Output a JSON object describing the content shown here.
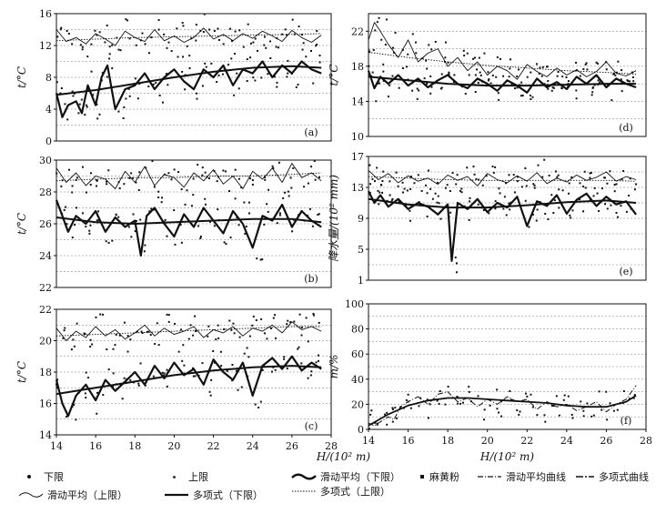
{
  "chart_data": [
    {
      "id": "a",
      "type": "line",
      "panel_label": "(a)",
      "ylabel": "t/°C",
      "xlabel": "",
      "ylim": [
        0,
        16
      ],
      "yticks": [
        0,
        4,
        8,
        12,
        16
      ],
      "xlim": [
        14,
        28
      ],
      "series": [
        {
          "role": "upper_moving_avg",
          "x": [
            14,
            14.5,
            15,
            15.5,
            16,
            16.5,
            17,
            17.5,
            18,
            18.5,
            19,
            19.5,
            20,
            20.5,
            21,
            21.5,
            22,
            22.5,
            23,
            23.5,
            24,
            24.5,
            25,
            25.5,
            26,
            26.5,
            27,
            27.5
          ],
          "y": [
            14,
            12.5,
            13,
            12.2,
            13.5,
            12.8,
            12,
            13.8,
            13,
            12.5,
            14,
            12.6,
            13.2,
            12.4,
            13,
            14.2,
            12.8,
            13.4,
            12.6,
            13.5,
            12.9,
            13.8,
            13.2,
            12.5,
            13.9,
            13,
            12.4,
            13.3
          ]
        },
        {
          "role": "upper_polynomial",
          "x": [
            14,
            16,
            18,
            20,
            22,
            24,
            26,
            27.5
          ],
          "y": [
            12.6,
            12.8,
            13,
            13.1,
            13.2,
            13.3,
            13.4,
            13.5
          ]
        },
        {
          "role": "lower_moving_avg",
          "x": [
            14,
            14.3,
            14.6,
            15,
            15.3,
            15.6,
            16,
            16.3,
            16.6,
            17,
            17.5,
            18,
            18.5,
            19,
            19.5,
            20,
            20.5,
            21,
            21.5,
            22,
            22.5,
            23,
            23.5,
            24,
            24.5,
            25,
            25.5,
            26,
            26.5,
            27,
            27.5
          ],
          "y": [
            6,
            3,
            4.5,
            5,
            3.5,
            7,
            4.5,
            8,
            9.5,
            4,
            6.5,
            7,
            8.5,
            6.5,
            8,
            9,
            7.5,
            6.5,
            9,
            8,
            9.5,
            7,
            9,
            8.5,
            10,
            8,
            9.5,
            8.5,
            10,
            9,
            8.5
          ]
        },
        {
          "role": "lower_polynomial",
          "x": [
            14,
            16,
            18,
            20,
            22,
            24,
            26,
            27.5
          ],
          "y": [
            5.8,
            6.4,
            7.2,
            8,
            8.7,
            9.2,
            9.4,
            9.2
          ]
        }
      ]
    },
    {
      "id": "b",
      "type": "line",
      "panel_label": "(b)",
      "ylabel": "t/°C",
      "xlabel": "",
      "ylim": [
        22,
        30
      ],
      "yticks": [
        22,
        24,
        26,
        28,
        30
      ],
      "xlim": [
        14,
        28
      ],
      "series": [
        {
          "role": "upper_moving_avg",
          "x": [
            14,
            14.5,
            15,
            15.5,
            16,
            16.5,
            17,
            17.5,
            18,
            18.5,
            19,
            19.5,
            20,
            20.5,
            21,
            21.5,
            22,
            22.5,
            23,
            23.5,
            24,
            24.5,
            25,
            25.5,
            26,
            26.5,
            27,
            27.5
          ],
          "y": [
            29.5,
            28.6,
            29.2,
            28.4,
            29,
            28.8,
            28.2,
            29.3,
            28.6,
            29.6,
            28.4,
            29.1,
            28.9,
            28.3,
            29.2,
            28.7,
            29.4,
            28.5,
            29,
            28.2,
            29.3,
            28.8,
            29.5,
            28.6,
            29.8,
            28.9,
            29.2,
            28.7
          ]
        },
        {
          "role": "upper_polynomial",
          "x": [
            14,
            16,
            18,
            20,
            22,
            24,
            26,
            27.5
          ],
          "y": [
            28.7,
            28.8,
            28.9,
            28.9,
            29,
            29,
            29.1,
            29.2
          ]
        },
        {
          "role": "lower_moving_avg",
          "x": [
            14,
            14.3,
            14.6,
            15,
            15.5,
            16,
            16.5,
            17,
            17.5,
            18,
            18.3,
            18.6,
            19,
            19.5,
            20,
            20.5,
            21,
            21.5,
            22,
            22.5,
            23,
            23.5,
            24,
            24.5,
            25,
            25.5,
            26,
            26.5,
            27,
            27.5
          ],
          "y": [
            27.5,
            26.5,
            25.5,
            26.5,
            26,
            26.8,
            25.5,
            26.4,
            25.8,
            26.2,
            24,
            26.5,
            27,
            26,
            25.2,
            26.6,
            25.8,
            27,
            26.2,
            25.4,
            26.8,
            26,
            24.5,
            26.5,
            26.2,
            27.2,
            25.8,
            26.8,
            26.2,
            25.8
          ]
        },
        {
          "role": "lower_polynomial",
          "x": [
            14,
            16,
            18,
            20,
            22,
            24,
            26,
            27.5
          ],
          "y": [
            26.4,
            26.1,
            26,
            26.1,
            26.2,
            26.3,
            26.3,
            26.1
          ]
        }
      ]
    },
    {
      "id": "c",
      "type": "line",
      "panel_label": "(c)",
      "ylabel": "t/°C",
      "xlabel": "",
      "ylim": [
        14,
        22
      ],
      "yticks": [
        14,
        16,
        18,
        20,
        22
      ],
      "xlim": [
        14,
        28
      ],
      "xticks": [
        14,
        16,
        18,
        20,
        22,
        24,
        26,
        28
      ],
      "series": [
        {
          "role": "upper_moving_avg",
          "x": [
            14,
            14.5,
            15,
            15.5,
            16,
            16.5,
            17,
            17.5,
            18,
            18.5,
            19,
            19.5,
            20,
            20.5,
            21,
            21.5,
            22,
            22.5,
            23,
            23.5,
            24,
            24.5,
            25,
            25.5,
            26,
            26.5,
            27,
            27.5
          ],
          "y": [
            20.8,
            20,
            20.6,
            20.2,
            20.9,
            20.3,
            20.7,
            20.1,
            20.5,
            21,
            20.3,
            20.8,
            20.4,
            20.6,
            20.9,
            20.2,
            20.7,
            20.5,
            20.9,
            20.3,
            20.8,
            20.6,
            21,
            20.5,
            21.2,
            20.7,
            20.9,
            20.6
          ]
        },
        {
          "role": "upper_polynomial",
          "x": [
            14,
            16,
            18,
            20,
            22,
            24,
            26,
            27.5
          ],
          "y": [
            20.3,
            20.4,
            20.5,
            20.6,
            20.7,
            20.8,
            20.9,
            20.9
          ]
        },
        {
          "role": "lower_moving_avg",
          "x": [
            14,
            14.3,
            14.6,
            15,
            15.5,
            16,
            16.5,
            17,
            17.5,
            18,
            18.5,
            19,
            19.5,
            20,
            20.5,
            21,
            21.5,
            22,
            22.5,
            23,
            23.5,
            24,
            24.5,
            25,
            25.5,
            26,
            26.5,
            27,
            27.5
          ],
          "y": [
            17.5,
            16,
            15.2,
            16.5,
            17.2,
            16.2,
            17.5,
            16.8,
            17.4,
            18,
            17.2,
            18.4,
            17.6,
            18.6,
            17.8,
            18.2,
            17.2,
            18.8,
            18,
            17.5,
            18.6,
            16.5,
            18.4,
            18.9,
            18.2,
            19,
            18.1,
            18.6,
            18.2
          ]
        },
        {
          "role": "lower_polynomial",
          "x": [
            14,
            16,
            18,
            20,
            22,
            24,
            26,
            27.5
          ],
          "y": [
            16.6,
            17,
            17.4,
            17.8,
            18.1,
            18.3,
            18.4,
            18.3
          ]
        }
      ]
    },
    {
      "id": "d",
      "type": "line",
      "panel_label": "(d)",
      "ylabel": "t/°C",
      "xlabel": "",
      "ylim": [
        10,
        24
      ],
      "yticks": [
        10,
        14,
        18,
        22
      ],
      "xlim": [
        14,
        28
      ],
      "series": [
        {
          "role": "upper_moving_avg",
          "x": [
            14,
            14.3,
            14.6,
            15,
            15.5,
            16,
            16.5,
            17,
            17.5,
            18,
            18.5,
            19,
            19.5,
            20,
            20.5,
            21,
            21.5,
            22,
            22.5,
            23,
            23.5,
            24,
            24.5,
            25,
            25.5,
            26,
            26.5,
            27,
            27.5
          ],
          "y": [
            21,
            23,
            22,
            20.5,
            19,
            21,
            18.5,
            19.5,
            20,
            18,
            19,
            17.5,
            18.5,
            17,
            18,
            17.5,
            16.5,
            18.2,
            17.4,
            16.8,
            17.8,
            17,
            17.6,
            16.8,
            17.4,
            18.5,
            17.2,
            16.9,
            17.5
          ]
        },
        {
          "role": "upper_polynomial",
          "x": [
            14,
            16,
            18,
            20,
            22,
            24,
            26,
            27.5
          ],
          "y": [
            19.6,
            19,
            18.5,
            18.1,
            17.8,
            17.5,
            17.3,
            17.1
          ]
        },
        {
          "role": "lower_moving_avg",
          "x": [
            14,
            14.3,
            14.6,
            15,
            15.5,
            16,
            16.5,
            17,
            17.5,
            18,
            18.5,
            19,
            19.5,
            20,
            20.5,
            21,
            21.5,
            22,
            22.5,
            23,
            23.5,
            24,
            24.5,
            25,
            25.5,
            26,
            26.5,
            27,
            27.5
          ],
          "y": [
            17.5,
            15.5,
            16.8,
            16,
            17,
            15.8,
            16.6,
            15.6,
            16.4,
            17,
            16,
            15.5,
            16.6,
            16,
            15.2,
            16.4,
            15.8,
            15,
            16.6,
            15.6,
            16.2,
            15.4,
            16.8,
            16,
            17,
            15.6,
            16.6,
            16,
            15.6
          ]
        },
        {
          "role": "lower_polynomial",
          "x": [
            14,
            16,
            18,
            20,
            22,
            24,
            26,
            27.5
          ],
          "y": [
            16.8,
            16.4,
            16,
            15.8,
            15.8,
            15.9,
            16,
            16
          ]
        }
      ]
    },
    {
      "id": "e",
      "type": "line",
      "panel_label": "(e)",
      "ylabel": "降水量/(10² mm)",
      "xlabel": "",
      "ylim": [
        1,
        17
      ],
      "yticks": [
        1,
        5,
        9,
        13,
        17
      ],
      "xlim": [
        14,
        28
      ],
      "series": [
        {
          "role": "upper_moving_avg",
          "x": [
            14,
            14.5,
            15,
            15.5,
            16,
            16.5,
            17,
            17.5,
            18,
            18.5,
            19,
            19.5,
            20,
            20.5,
            21,
            21.5,
            22,
            22.5,
            23,
            23.5,
            24,
            24.5,
            25,
            25.5,
            26,
            26.5,
            27,
            27.5
          ],
          "y": [
            15.2,
            14,
            14.8,
            13.6,
            14.5,
            13.8,
            14.2,
            13.4,
            14.6,
            13.9,
            14.4,
            13.2,
            14.8,
            14,
            13.6,
            14.5,
            13.8,
            14.9,
            13.5,
            14.2,
            13.7,
            14.6,
            13.9,
            14.3,
            15,
            13.8,
            14.4,
            14
          ]
        },
        {
          "role": "upper_polynomial",
          "x": [
            14,
            16,
            18,
            20,
            22,
            24,
            26,
            27.5
          ],
          "y": [
            14.4,
            14.2,
            14,
            13.9,
            13.9,
            13.9,
            13.9,
            13.8
          ]
        },
        {
          "role": "lower_moving_avg",
          "x": [
            14,
            14.3,
            14.6,
            15,
            15.5,
            16,
            16.5,
            17,
            17.5,
            18,
            18.2,
            18.5,
            19,
            19.5,
            20,
            20.5,
            21,
            21.5,
            22,
            22.5,
            23,
            23.5,
            24,
            24.5,
            25,
            25.5,
            26,
            26.5,
            27,
            27.5
          ],
          "y": [
            12.5,
            11,
            12,
            10.5,
            11.5,
            10.2,
            11,
            10.5,
            9.5,
            10.8,
            3.5,
            11,
            10.2,
            11.5,
            9.8,
            11,
            10.4,
            11.8,
            8,
            11.2,
            10.6,
            12,
            9.6,
            11.4,
            12.2,
            10.6,
            11.8,
            10.8,
            11.2,
            9.5
          ]
        },
        {
          "role": "lower_polynomial",
          "x": [
            14,
            16,
            18,
            20,
            22,
            24,
            26,
            27.5
          ],
          "y": [
            11.5,
            10.8,
            10.4,
            10.4,
            10.7,
            11.1,
            11.3,
            11
          ]
        }
      ]
    },
    {
      "id": "f",
      "type": "line",
      "panel_label": "(f)",
      "ylabel": "m/%",
      "xlabel": "H/(10² m)",
      "ylim": [
        0,
        100
      ],
      "yticks": [
        0,
        20,
        40,
        60,
        80,
        100
      ],
      "xlim": [
        14,
        28
      ],
      "xticks": [
        14,
        16,
        18,
        20,
        22,
        24,
        26,
        28
      ],
      "series": [
        {
          "role": "ephedra_moving_avg",
          "x": [
            14,
            14.3,
            14.6,
            15,
            15.3,
            15.6,
            16,
            16.5,
            17,
            17.5,
            18,
            18.5,
            19,
            19.5,
            20,
            20.5,
            21,
            21.5,
            22,
            22.5,
            23,
            23.5,
            24,
            24.5,
            25,
            25.5,
            26,
            26.5,
            27,
            27.5
          ],
          "y": [
            5,
            3,
            6,
            10,
            8,
            18,
            22,
            26,
            20,
            28,
            30,
            22,
            25,
            18,
            24,
            20,
            26,
            22,
            24,
            16,
            22,
            18,
            20,
            15,
            18,
            22,
            14,
            20,
            24,
            35
          ]
        },
        {
          "role": "ephedra_polynomial",
          "x": [
            14,
            15,
            16,
            17,
            18,
            19,
            20,
            21,
            22,
            23,
            24,
            25,
            26,
            27,
            27.5
          ],
          "y": [
            3,
            12,
            19,
            23,
            25,
            25,
            24,
            23,
            22,
            21,
            19,
            18,
            18,
            22,
            27
          ]
        }
      ]
    }
  ],
  "legend": {
    "items": [
      {
        "key": "lower_pts",
        "label": "下限"
      },
      {
        "key": "upper_pts",
        "label": "上限"
      },
      {
        "key": "lower_ma",
        "label": "滑动平均（下限）"
      },
      {
        "key": "ephedra_pts",
        "label": "麻黄粉"
      },
      {
        "key": "ephedra_ma",
        "label": "滑动平均曲线"
      },
      {
        "key": "ephedra_poly",
        "label": "多项式曲线"
      },
      {
        "key": "upper_ma",
        "label": "滑动平均（上限）"
      },
      {
        "key": "lower_poly",
        "label": "多项式（下限）"
      },
      {
        "key": "upper_poly",
        "label": "多项式（上限）"
      }
    ]
  }
}
